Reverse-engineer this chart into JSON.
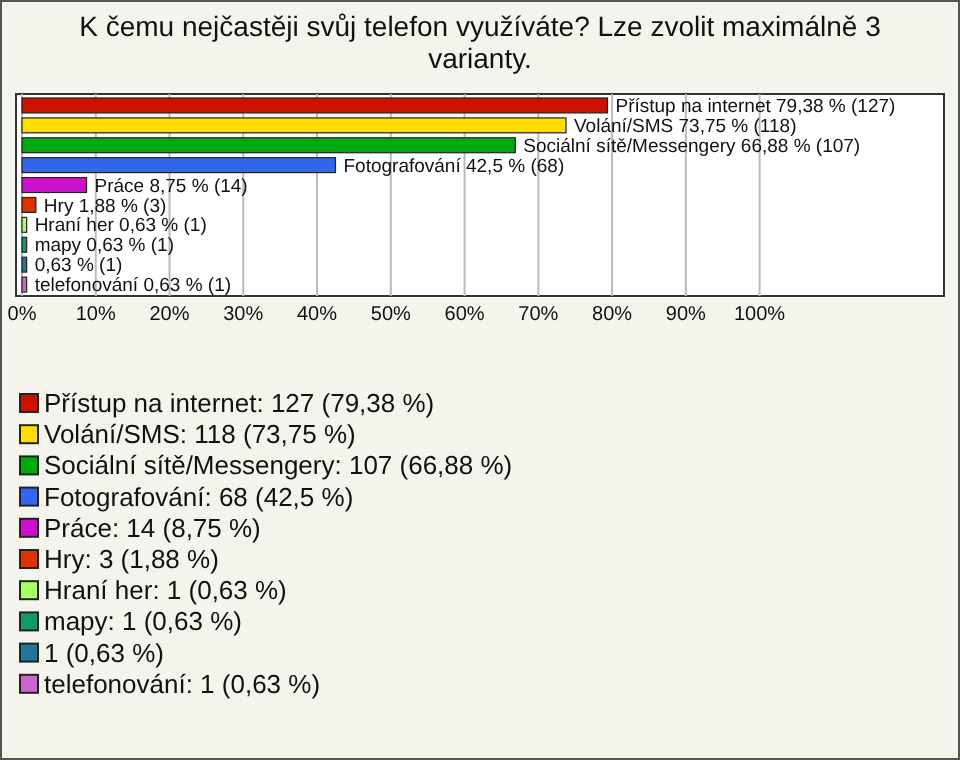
{
  "chart_data": {
    "type": "bar",
    "orientation": "horizontal",
    "title": "K čemu nejčastěji svůj telefon využíváte? Lze zvolit maximálně 3 varianty.",
    "categories": [
      null,
      null,
      null,
      null,
      null,
      null,
      null,
      null,
      null,
      null
    ],
    "xlim": [
      0,
      125
    ],
    "xticks": [
      {
        "value": 0,
        "label": "0%"
      },
      {
        "value": 10,
        "label": "10%"
      },
      {
        "value": 20,
        "label": "20%"
      },
      {
        "value": 30,
        "label": "30%"
      },
      {
        "value": 40,
        "label": "40%"
      },
      {
        "value": 50,
        "label": "50%"
      },
      {
        "value": 60,
        "label": "60%"
      },
      {
        "value": 70,
        "label": "70%"
      },
      {
        "value": 80,
        "label": "80%"
      },
      {
        "value": 90,
        "label": "90%"
      },
      {
        "value": 100,
        "label": "100%"
      }
    ],
    "grid": "x",
    "legend": "bottom",
    "series": [
      {
        "name": "Přístup na internet: 127 (79,38 %)",
        "color": "#cc1100",
        "values": [
          79.38,
          null,
          null,
          null,
          null,
          null,
          null,
          null,
          null,
          null
        ],
        "value_labels": [
          "Přístup na internet 79,38 % (127)",
          null,
          null,
          null,
          null,
          null,
          null,
          null,
          null,
          null
        ]
      },
      {
        "name": "Volání/SMS: 118 (73,75 %)",
        "color": "#ffdd00",
        "values": [
          null,
          73.75,
          null,
          null,
          null,
          null,
          null,
          null,
          null,
          null
        ],
        "value_labels": [
          null,
          "Volání/SMS 73,75 % (118)",
          null,
          null,
          null,
          null,
          null,
          null,
          null,
          null
        ]
      },
      {
        "name": "Sociální sítě/Messengery: 107 (66,88 %)",
        "color": "#00aa11",
        "values": [
          null,
          null,
          66.88,
          null,
          null,
          null,
          null,
          null,
          null,
          null
        ],
        "value_labels": [
          null,
          null,
          "Sociální sítě/Messengery 66,88 % (107)",
          null,
          null,
          null,
          null,
          null,
          null,
          null
        ]
      },
      {
        "name": "Fotografování: 68 (42,5 %)",
        "color": "#3366ee",
        "values": [
          null,
          null,
          null,
          42.5,
          null,
          null,
          null,
          null,
          null,
          null
        ],
        "value_labels": [
          null,
          null,
          null,
          "Fotografování 42,5 % (68)",
          null,
          null,
          null,
          null,
          null,
          null
        ]
      },
      {
        "name": "Práce: 14 (8,75 %)",
        "color": "#cc11cc",
        "values": [
          null,
          null,
          null,
          null,
          8.75,
          null,
          null,
          null,
          null,
          null
        ],
        "value_labels": [
          null,
          null,
          null,
          null,
          "Práce 8,75 % (14)",
          null,
          null,
          null,
          null,
          null
        ]
      },
      {
        "name": "Hry: 3 (1,88 %)",
        "color": "#dd3300",
        "values": [
          null,
          null,
          null,
          null,
          null,
          1.88,
          null,
          null,
          null,
          null
        ],
        "value_labels": [
          null,
          null,
          null,
          null,
          null,
          "Hry 1,88 % (3)",
          null,
          null,
          null,
          null
        ]
      },
      {
        "name": "Hraní her: 1 (0,63 %)",
        "color": "#aaff66",
        "values": [
          null,
          null,
          null,
          null,
          null,
          null,
          0.63,
          null,
          null,
          null
        ],
        "value_labels": [
          null,
          null,
          null,
          null,
          null,
          null,
          "Hraní her 0,63 % (1)",
          null,
          null,
          null
        ]
      },
      {
        "name": "mapy: 1 (0,63 %)",
        "color": "#119966",
        "values": [
          null,
          null,
          null,
          null,
          null,
          null,
          null,
          0.63,
          null,
          null
        ],
        "value_labels": [
          null,
          null,
          null,
          null,
          null,
          null,
          null,
          "mapy 0,63 % (1)",
          null,
          null
        ]
      },
      {
        "name": "1 (0,63 %)",
        "color": "#227799",
        "values": [
          null,
          null,
          null,
          null,
          null,
          null,
          null,
          null,
          0.63,
          null
        ],
        "value_labels": [
          null,
          null,
          null,
          null,
          null,
          null,
          null,
          null,
          "0,63 % (1)",
          null
        ]
      },
      {
        "name": "telefonování: 1 (0,63 %)",
        "color": "#cc66cc",
        "values": [
          null,
          null,
          null,
          null,
          null,
          null,
          null,
          null,
          null,
          0.63
        ],
        "value_labels": [
          null,
          null,
          null,
          null,
          null,
          null,
          null,
          null,
          null,
          "telefonování 0,63 % (1)"
        ]
      }
    ]
  }
}
